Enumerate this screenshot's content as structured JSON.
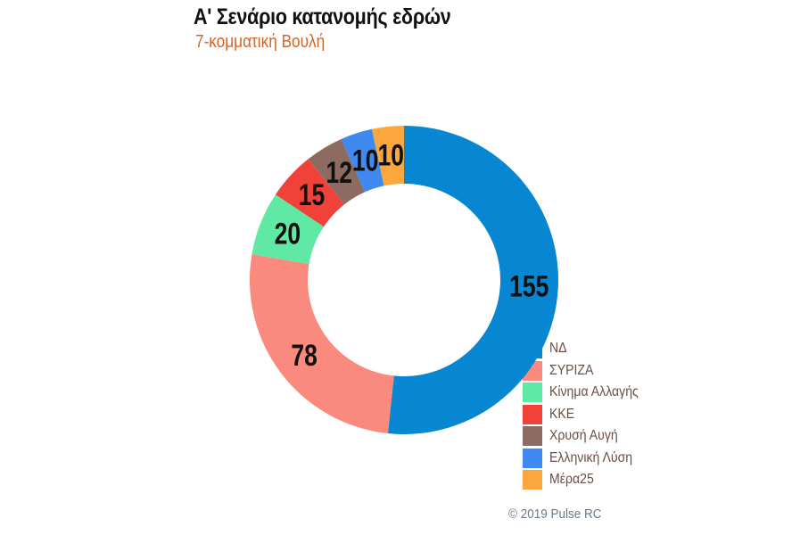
{
  "header": {
    "title": "Α' Σενάριο κατανομής εδρών",
    "subtitle": "7-κομματική Βουλή"
  },
  "footer": {
    "credit": "© 2019 Pulse RC"
  },
  "chart_data": {
    "type": "pie",
    "variant": "donut",
    "title": "Α' Σενάριο κατανομής εδρών",
    "subtitle": "7-κομματική Βουλή",
    "total": 300,
    "start_angle_deg": 0,
    "direction": "clockwise",
    "legend_position": "bottom-right",
    "categories": [
      "ΝΔ",
      "ΣΥΡΙΖΑ",
      "Κίνημα Αλλαγής",
      "ΚΚΕ",
      "Χρυσή Αυγή",
      "Ελληνική Λύση",
      "Μέρα25"
    ],
    "values": [
      155,
      78,
      20,
      15,
      12,
      10,
      10
    ],
    "colors": [
      "#0787d2",
      "#f98a7d",
      "#5fe9a4",
      "#f1423a",
      "#8c6b60",
      "#3f89f0",
      "#fba73d"
    ],
    "data_labels": [
      "155",
      "78",
      "20",
      "15",
      "12",
      "10",
      "10"
    ]
  },
  "legend": {
    "items": [
      {
        "label": "ΝΔ",
        "color": "#0787d2"
      },
      {
        "label": "ΣΥΡΙΖΑ",
        "color": "#f98a7d"
      },
      {
        "label": "Κίνημα Αλλαγής",
        "color": "#5fe9a4"
      },
      {
        "label": "ΚΚΕ",
        "color": "#f1423a"
      },
      {
        "label": "Χρυσή Αυγή",
        "color": "#8c6b60"
      },
      {
        "label": "Ελληνική Λύση",
        "color": "#3f89f0"
      },
      {
        "label": "Μέρα25",
        "color": "#fba73d"
      }
    ]
  }
}
